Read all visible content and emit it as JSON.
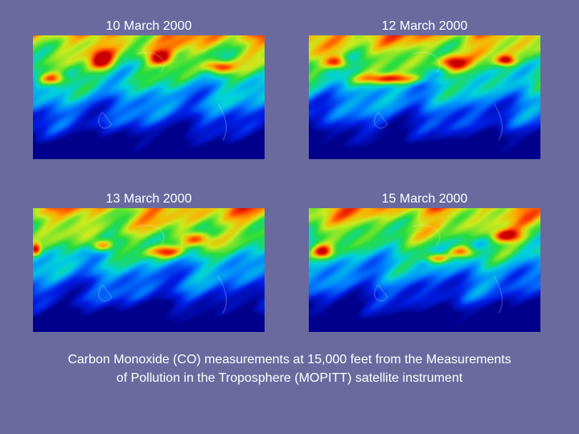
{
  "panels": [
    {
      "date": "10 March 2000",
      "seed": 3,
      "hotspots": [
        [
          0.08,
          0.35,
          0.06,
          0.05
        ],
        [
          0.3,
          0.2,
          0.05,
          0.08
        ],
        [
          0.55,
          0.18,
          0.05,
          0.06
        ],
        [
          0.8,
          0.25,
          0.06,
          0.05
        ]
      ]
    },
    {
      "date": "12 March 2000",
      "seed": 7,
      "hotspots": [
        [
          0.35,
          0.35,
          0.14,
          0.04
        ],
        [
          0.12,
          0.22,
          0.05,
          0.05
        ],
        [
          0.62,
          0.22,
          0.06,
          0.06
        ],
        [
          0.85,
          0.2,
          0.04,
          0.04
        ]
      ]
    },
    {
      "date": "13 March 2000",
      "seed": 11,
      "hotspots": [
        [
          0.57,
          0.35,
          0.08,
          0.05
        ],
        [
          0.01,
          0.33,
          0.02,
          0.05
        ],
        [
          0.7,
          0.25,
          0.07,
          0.06
        ],
        [
          0.3,
          0.3,
          0.05,
          0.05
        ]
      ]
    },
    {
      "date": "15 March 2000",
      "seed": 17,
      "hotspots": [
        [
          0.66,
          0.35,
          0.06,
          0.05
        ],
        [
          0.06,
          0.35,
          0.04,
          0.05
        ],
        [
          0.85,
          0.22,
          0.07,
          0.05
        ],
        [
          0.55,
          0.4,
          0.05,
          0.04
        ]
      ]
    }
  ],
  "caption": {
    "line1": "Carbon Monoxide (CO) measurements at 15,000 feet from the Measurements",
    "line2": "of Pollution in the Troposphere (MOPITT) satellite instrument"
  },
  "colors": {
    "background": "#6a6a9f",
    "text": "#ffffff"
  }
}
